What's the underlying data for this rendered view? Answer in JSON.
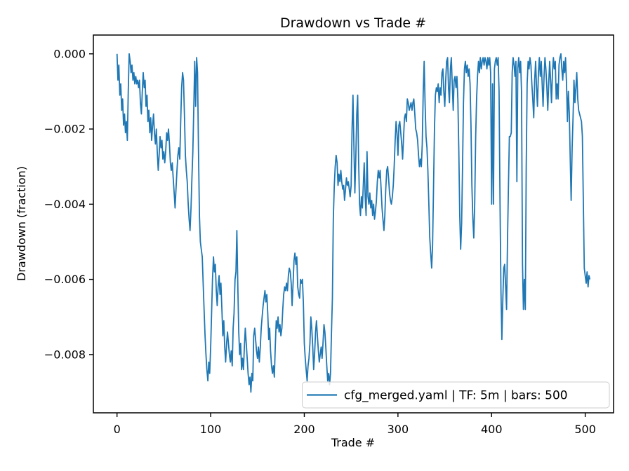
{
  "figure": {
    "background": "#ffffff"
  },
  "chart_data": {
    "type": "line",
    "title": "Drawdown vs Trade #",
    "xlabel": "Trade #",
    "ylabel": "Drawdown (fraction)",
    "grid": false,
    "legend": {
      "position": "lower right",
      "entries": [
        "cfg_merged.yaml | TF: 5m | bars: 500"
      ]
    },
    "colors": {
      "line": "#1f77b4",
      "axis": "#000000",
      "legend_border": "#cccccc",
      "legend_background": "rgba(255,255,255,0.8)"
    },
    "xlim": [
      -25.25,
      530.25
    ],
    "ylim": [
      -0.00955,
      0.0005
    ],
    "x_ticks": [
      0,
      100,
      200,
      300,
      400,
      500
    ],
    "x_tick_labels": [
      "0",
      "100",
      "200",
      "300",
      "400",
      "500"
    ],
    "y_ticks": [
      0.0,
      -0.002,
      -0.004,
      -0.006,
      -0.008
    ],
    "y_tick_labels": [
      "0.000",
      "−0.002",
      "−0.004",
      "−0.006",
      "−0.008"
    ],
    "x_start": 0,
    "x_step": 1,
    "values": [
      0.0,
      -0.0007,
      -0.0003,
      -0.0011,
      -0.0008,
      -0.0015,
      -0.0012,
      -0.0019,
      -0.0016,
      -0.0021,
      -0.0018,
      -0.0023,
      -0.001,
      0.0,
      -0.0002,
      -0.0005,
      -0.0003,
      -0.0007,
      -0.0005,
      -0.0008,
      -0.0006,
      -0.0008,
      -0.0007,
      -0.0009,
      -0.0007,
      -0.0013,
      -0.0016,
      -0.001,
      -0.0005,
      -0.0009,
      -0.0007,
      -0.0014,
      -0.0011,
      -0.0018,
      -0.0015,
      -0.0021,
      -0.0017,
      -0.0023,
      -0.0019,
      -0.0016,
      -0.0021,
      -0.0024,
      -0.002,
      -0.0026,
      -0.0031,
      -0.0027,
      -0.0022,
      -0.0025,
      -0.0023,
      -0.0028,
      -0.0026,
      -0.0029,
      -0.0026,
      -0.0021,
      -0.0023,
      -0.002,
      -0.0024,
      -0.0029,
      -0.0031,
      -0.0029,
      -0.0033,
      -0.0037,
      -0.0041,
      -0.0036,
      -0.0031,
      -0.0027,
      -0.0025,
      -0.0028,
      -0.0018,
      -0.0009,
      -0.0005,
      -0.0007,
      -0.0016,
      -0.0027,
      -0.0031,
      -0.0034,
      -0.004,
      -0.0044,
      -0.0047,
      -0.0041,
      -0.0033,
      -0.0026,
      -0.0014,
      -0.0002,
      -0.0014,
      -0.0001,
      -0.0005,
      -0.0025,
      -0.0043,
      -0.005,
      -0.0052,
      -0.0054,
      -0.0061,
      -0.0068,
      -0.0075,
      -0.008,
      -0.0084,
      -0.0087,
      -0.0082,
      -0.0085,
      -0.0078,
      -0.0069,
      -0.006,
      -0.0054,
      -0.0058,
      -0.0056,
      -0.0063,
      -0.0067,
      -0.0062,
      -0.0059,
      -0.0064,
      -0.0061,
      -0.0068,
      -0.0075,
      -0.0071,
      -0.0078,
      -0.0082,
      -0.0077,
      -0.0074,
      -0.0077,
      -0.008,
      -0.0082,
      -0.0079,
      -0.0083,
      -0.0073,
      -0.0069,
      -0.006,
      -0.0058,
      -0.0047,
      -0.0062,
      -0.0074,
      -0.008,
      -0.0077,
      -0.0084,
      -0.0081,
      -0.0084,
      -0.0078,
      -0.0073,
      -0.0077,
      -0.0081,
      -0.0085,
      -0.0088,
      -0.0086,
      -0.009,
      -0.0085,
      -0.0087,
      -0.0075,
      -0.0073,
      -0.0076,
      -0.0079,
      -0.0081,
      -0.0078,
      -0.0082,
      -0.0078,
      -0.0073,
      -0.007,
      -0.0067,
      -0.0065,
      -0.0063,
      -0.0066,
      -0.0064,
      -0.0069,
      -0.0076,
      -0.0073,
      -0.0079,
      -0.0083,
      -0.0085,
      -0.0083,
      -0.0086,
      -0.0078,
      -0.0071,
      -0.0073,
      -0.007,
      -0.0074,
      -0.0072,
      -0.0075,
      -0.0073,
      -0.0068,
      -0.0064,
      -0.0062,
      -0.0063,
      -0.0061,
      -0.0063,
      -0.0059,
      -0.0057,
      -0.0058,
      -0.0061,
      -0.0067,
      -0.0061,
      -0.0055,
      -0.0053,
      -0.0056,
      -0.0054,
      -0.0062,
      -0.0064,
      -0.0065,
      -0.006,
      -0.0061,
      -0.006,
      -0.0066,
      -0.0077,
      -0.0081,
      -0.0084,
      -0.0087,
      -0.0083,
      -0.0081,
      -0.0077,
      -0.007,
      -0.0073,
      -0.0078,
      -0.0084,
      -0.008,
      -0.0074,
      -0.0071,
      -0.0075,
      -0.0079,
      -0.0082,
      -0.008,
      -0.0078,
      -0.0081,
      -0.0077,
      -0.0072,
      -0.0074,
      -0.0078,
      -0.0083,
      -0.0087,
      -0.0085,
      -0.0088,
      -0.0085,
      -0.0074,
      -0.0065,
      -0.0044,
      -0.0035,
      -0.003,
      -0.0027,
      -0.0029,
      -0.0035,
      -0.0032,
      -0.0034,
      -0.0031,
      -0.0034,
      -0.0036,
      -0.0035,
      -0.0039,
      -0.0036,
      -0.0033,
      -0.0035,
      -0.0034,
      -0.0036,
      -0.0038,
      -0.0035,
      -0.002,
      -0.0011,
      -0.0025,
      -0.0037,
      -0.0028,
      -0.0016,
      -0.0011,
      -0.0028,
      -0.004,
      -0.0043,
      -0.0038,
      -0.0041,
      -0.0035,
      -0.0029,
      -0.0038,
      -0.0043,
      -0.0026,
      -0.0038,
      -0.004,
      -0.0037,
      -0.0041,
      -0.0039,
      -0.0043,
      -0.004,
      -0.0044,
      -0.0042,
      -0.0039,
      -0.0034,
      -0.0031,
      -0.0033,
      -0.0031,
      -0.0036,
      -0.0041,
      -0.0044,
      -0.0047,
      -0.0043,
      -0.0036,
      -0.0031,
      -0.003,
      -0.0033,
      -0.0037,
      -0.0039,
      -0.004,
      -0.0038,
      -0.0035,
      -0.003,
      -0.0023,
      -0.0018,
      -0.0021,
      -0.0027,
      -0.0019,
      -0.0018,
      -0.0021,
      -0.0024,
      -0.0028,
      -0.0022,
      -0.0017,
      -0.0016,
      -0.0018,
      -0.0012,
      -0.0013,
      -0.0015,
      -0.0014,
      -0.0013,
      -0.0015,
      -0.0013,
      -0.0012,
      -0.0016,
      -0.002,
      -0.0021,
      -0.0023,
      -0.0027,
      -0.003,
      -0.0028,
      -0.003,
      -0.0024,
      -0.001,
      -0.0002,
      -0.0013,
      -0.0022,
      -0.0025,
      -0.0031,
      -0.004,
      -0.0049,
      -0.0053,
      -0.0057,
      -0.0051,
      -0.0035,
      -0.002,
      -0.0011,
      -0.0009,
      -0.001,
      -0.0008,
      -0.0013,
      -0.0009,
      -0.0011,
      -0.0005,
      -0.0004,
      -0.001,
      -0.0014,
      -0.0007,
      -0.0002,
      -0.0001,
      -0.0009,
      -0.0013,
      -0.0004,
      -0.0001,
      -0.0008,
      -0.0015,
      -0.0007,
      -0.0006,
      -0.0009,
      -0.0006,
      -0.0012,
      -0.0026,
      -0.0043,
      -0.0052,
      -0.0045,
      -0.003,
      -0.0013,
      -0.0004,
      -0.0002,
      -0.0005,
      -0.0003,
      -0.0006,
      -0.0004,
      -0.0008,
      -0.0019,
      -0.0035,
      -0.0044,
      -0.0049,
      -0.004,
      -0.0022,
      -0.0012,
      -0.0006,
      -0.0002,
      -0.0005,
      -0.0001,
      -0.0004,
      -0.0002,
      -0.0001,
      -0.0003,
      -0.0001,
      -0.0002,
      -0.0004,
      -0.0001,
      -0.0003,
      -0.0001,
      -0.0005,
      -0.004,
      -0.0008,
      -0.004,
      -0.0004,
      -0.0002,
      -0.0001,
      -0.0003,
      -0.0001,
      -0.001,
      -0.004,
      -0.0063,
      -0.0076,
      -0.0065,
      -0.0057,
      -0.0056,
      -0.0062,
      -0.0068,
      -0.005,
      -0.0035,
      -0.0022,
      -0.0022,
      -0.0021,
      -0.0005,
      -0.0001,
      -0.0003,
      -0.0006,
      -0.0002,
      -0.0034,
      -0.0004,
      -0.0001,
      -0.0005,
      -0.0002,
      -0.001,
      -0.0056,
      -0.0068,
      -0.006,
      -0.0068,
      -0.003,
      -0.0008,
      -0.0002,
      -0.0004,
      -0.0001,
      -0.0003,
      -0.0008,
      -0.0012,
      -0.0017,
      -0.0007,
      -0.0002,
      -0.0009,
      -0.0014,
      -0.0005,
      -0.0001,
      -0.0006,
      -0.0002,
      -0.0008,
      -0.0014,
      -0.0006,
      -0.0001,
      -0.0004,
      -0.0009,
      -0.0015,
      -0.0008,
      -0.0002,
      -0.0007,
      -0.0013,
      -0.0005,
      -0.0001,
      -0.0004,
      -0.0002,
      -0.0012,
      -0.0008,
      -0.0012,
      -0.0003,
      -0.0001,
      0.0,
      -0.0004,
      -0.0007,
      -0.0002,
      -0.0005,
      -0.0001,
      -0.0008,
      -0.0018,
      -0.001,
      -0.0016,
      -0.0028,
      -0.0039,
      -0.0025,
      -0.0017,
      -0.0007,
      -0.0013,
      -0.0009,
      -0.0005,
      -0.0012,
      -0.0015,
      -0.0016,
      -0.0017,
      -0.0018,
      -0.0022,
      -0.004,
      -0.0057,
      -0.0059,
      -0.0061,
      -0.0058,
      -0.0062,
      -0.0059,
      -0.006
    ]
  }
}
